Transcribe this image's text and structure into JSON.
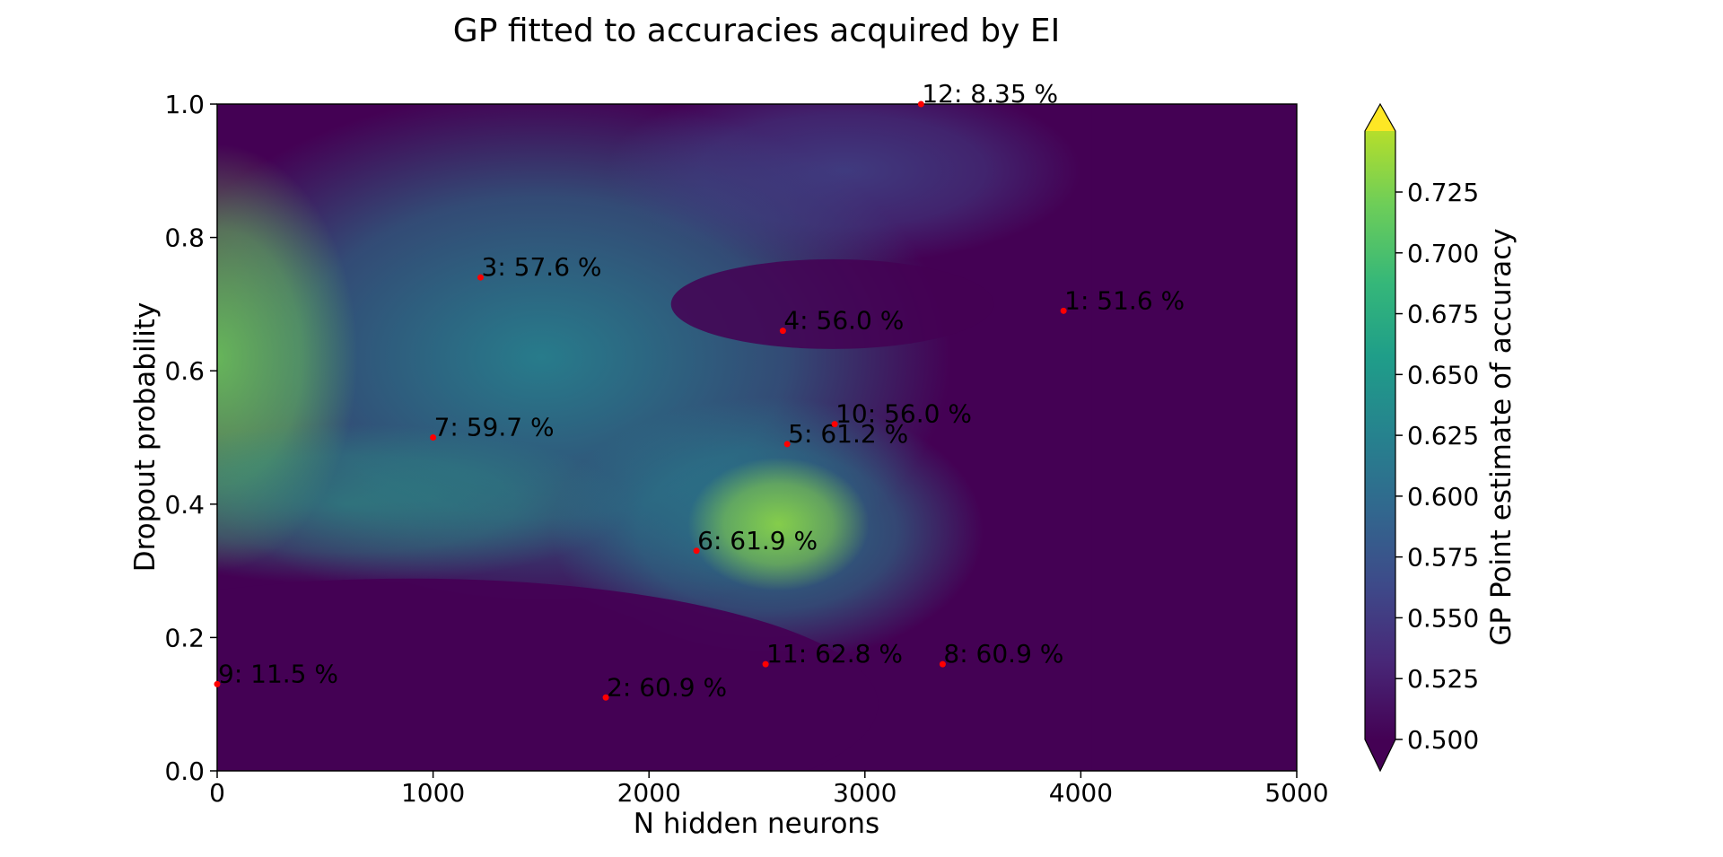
{
  "chart_data": {
    "type": "heatmap",
    "title": "GP fitted to accuracies acquired by EI",
    "xlabel": "N hidden neurons",
    "ylabel": "Dropout probability",
    "xlim": [
      0,
      5000
    ],
    "ylim": [
      0.0,
      1.0
    ],
    "x_ticks": [
      "0",
      "1000",
      "2000",
      "3000",
      "4000",
      "5000"
    ],
    "y_ticks": [
      "0.0",
      "0.2",
      "0.4",
      "0.6",
      "0.8",
      "1.0"
    ],
    "colorbar": {
      "label": "GP Point estimate of accuracy",
      "range": [
        0.5,
        0.75
      ],
      "extend": "both",
      "ticks": [
        "0.500",
        "0.525",
        "0.550",
        "0.575",
        "0.600",
        "0.625",
        "0.650",
        "0.675",
        "0.700",
        "0.725"
      ],
      "colormap": "viridis"
    },
    "marker_color": "#ff0000",
    "points": [
      {
        "x": 3920,
        "y": 0.69,
        "label": "1: 51.6 %"
      },
      {
        "x": 1800,
        "y": 0.11,
        "label": "2: 60.9 %"
      },
      {
        "x": 1220,
        "y": 0.74,
        "label": "3: 57.6 %"
      },
      {
        "x": 2620,
        "y": 0.66,
        "label": "4: 56.0 %"
      },
      {
        "x": 2640,
        "y": 0.49,
        "label": "5: 61.2 %"
      },
      {
        "x": 2220,
        "y": 0.33,
        "label": "6: 61.9 %"
      },
      {
        "x": 1000,
        "y": 0.5,
        "label": "7: 59.7 %"
      },
      {
        "x": 3360,
        "y": 0.16,
        "label": "8: 60.9 %"
      },
      {
        "x": 0,
        "y": 0.13,
        "label": "9: 11.5 %"
      },
      {
        "x": 2860,
        "y": 0.52,
        "label": "10: 56.0 %"
      },
      {
        "x": 2540,
        "y": 0.16,
        "label": "11: 62.8 %"
      },
      {
        "x": 3260,
        "y": 1.0,
        "label": "12: 8.35 %"
      }
    ]
  }
}
